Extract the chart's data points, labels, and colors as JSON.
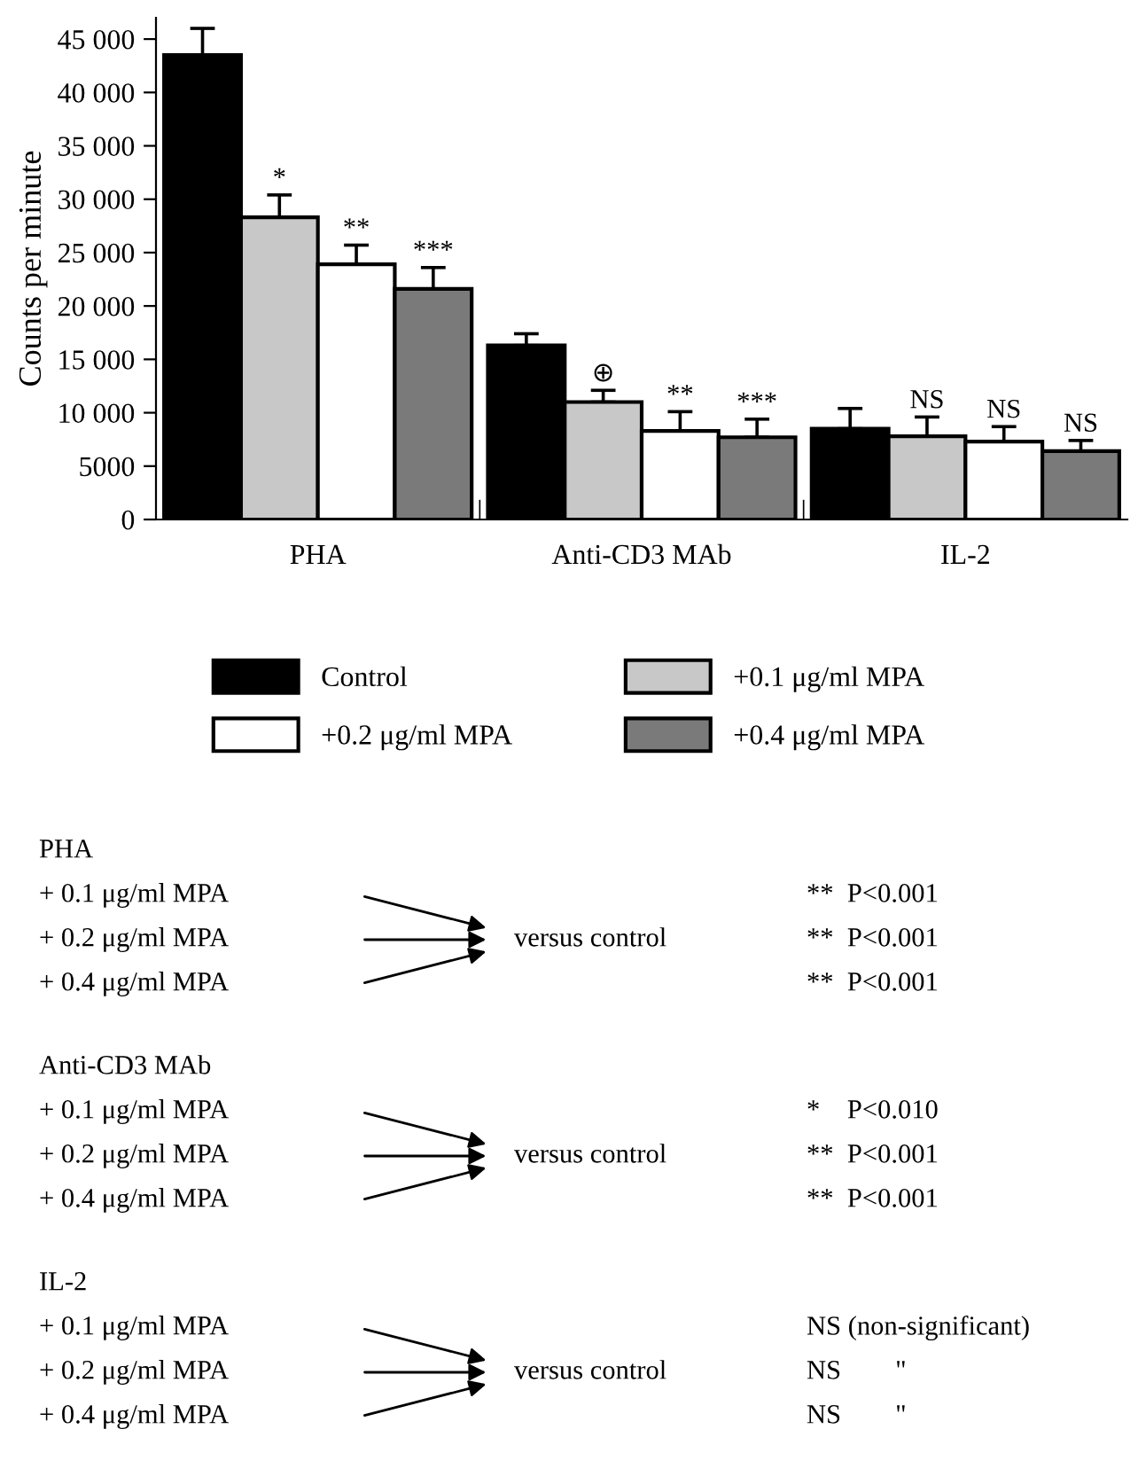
{
  "chart_data": {
    "type": "bar",
    "ylabel": "Counts per minute",
    "categories": [
      "PHA",
      "Anti-CD3 MAb",
      "IL-2"
    ],
    "series": [
      {
        "name": "Control",
        "color": "#000000",
        "values": [
          43500,
          16300,
          8500
        ],
        "errors": [
          [
            43500,
            46000
          ],
          [
            16300,
            17400
          ],
          [
            8500,
            10400
          ]
        ],
        "value_labels": [
          null,
          null,
          null
        ]
      },
      {
        "name": "+0.1 μg/ml MPA",
        "color": "#c8c8c8",
        "values": [
          28300,
          11000,
          7800
        ],
        "errors": [
          [
            28300,
            30400
          ],
          [
            11000,
            12100
          ],
          [
            7800,
            9600
          ]
        ],
        "value_labels": [
          "*",
          "⊕",
          "NS"
        ]
      },
      {
        "name": "+0.2 μg/ml MPA",
        "color": "#ffffff",
        "values": [
          23900,
          8300,
          7300
        ],
        "errors": [
          [
            23900,
            25700
          ],
          [
            8300,
            10100
          ],
          [
            7300,
            8700
          ]
        ],
        "value_labels": [
          "**",
          "**",
          "NS"
        ]
      },
      {
        "name": "+0.4 μg/ml MPA",
        "color": "#7a7a7a",
        "values": [
          21600,
          7700,
          6400
        ],
        "errors": [
          [
            21600,
            23600
          ],
          [
            7700,
            9400
          ],
          [
            6400,
            7400
          ]
        ],
        "value_labels": [
          "***",
          "***",
          "NS"
        ]
      }
    ],
    "ylim": [
      0,
      47000
    ],
    "yticks": [
      0,
      {
        "value": 5000,
        "label": "5000"
      },
      {
        "value": 10000,
        "label": "10 000"
      },
      {
        "value": 15000,
        "label": "15 000"
      },
      {
        "value": 20000,
        "label": "20 000"
      },
      {
        "value": 25000,
        "label": "25 000"
      },
      {
        "value": 30000,
        "label": "30 000"
      },
      {
        "value": 35000,
        "label": "35 000"
      },
      {
        "value": 40000,
        "label": "40 000"
      },
      {
        "value": 45000,
        "label": "45 000"
      }
    ],
    "grid": false,
    "legend": "bottom",
    "annotations": [
      "PHA",
      "+ 0.1 μg/ml MPA",
      "+ 0.2 μg/ml MPA",
      "+ 0.4 μg/ml MPA",
      "versus control",
      "**  P<0.001",
      "**  P<0.001",
      "**  P<0.001",
      "Anti-CD3 MAb",
      "+ 0.1 μg/ml MPA",
      "+ 0.2 μg/ml MPA",
      "+ 0.4 μg/ml MPA",
      "versus control",
      "*    P<0.010",
      "**  P<0.001",
      "**  P<0.001",
      "IL-2",
      "+ 0.1 μg/ml MPA",
      "+ 0.2 μg/ml MPA",
      "+ 0.4 μg/ml MPA",
      "versus control",
      "NS (non-significant)",
      "NS        \"",
      "NS        \""
    ]
  }
}
